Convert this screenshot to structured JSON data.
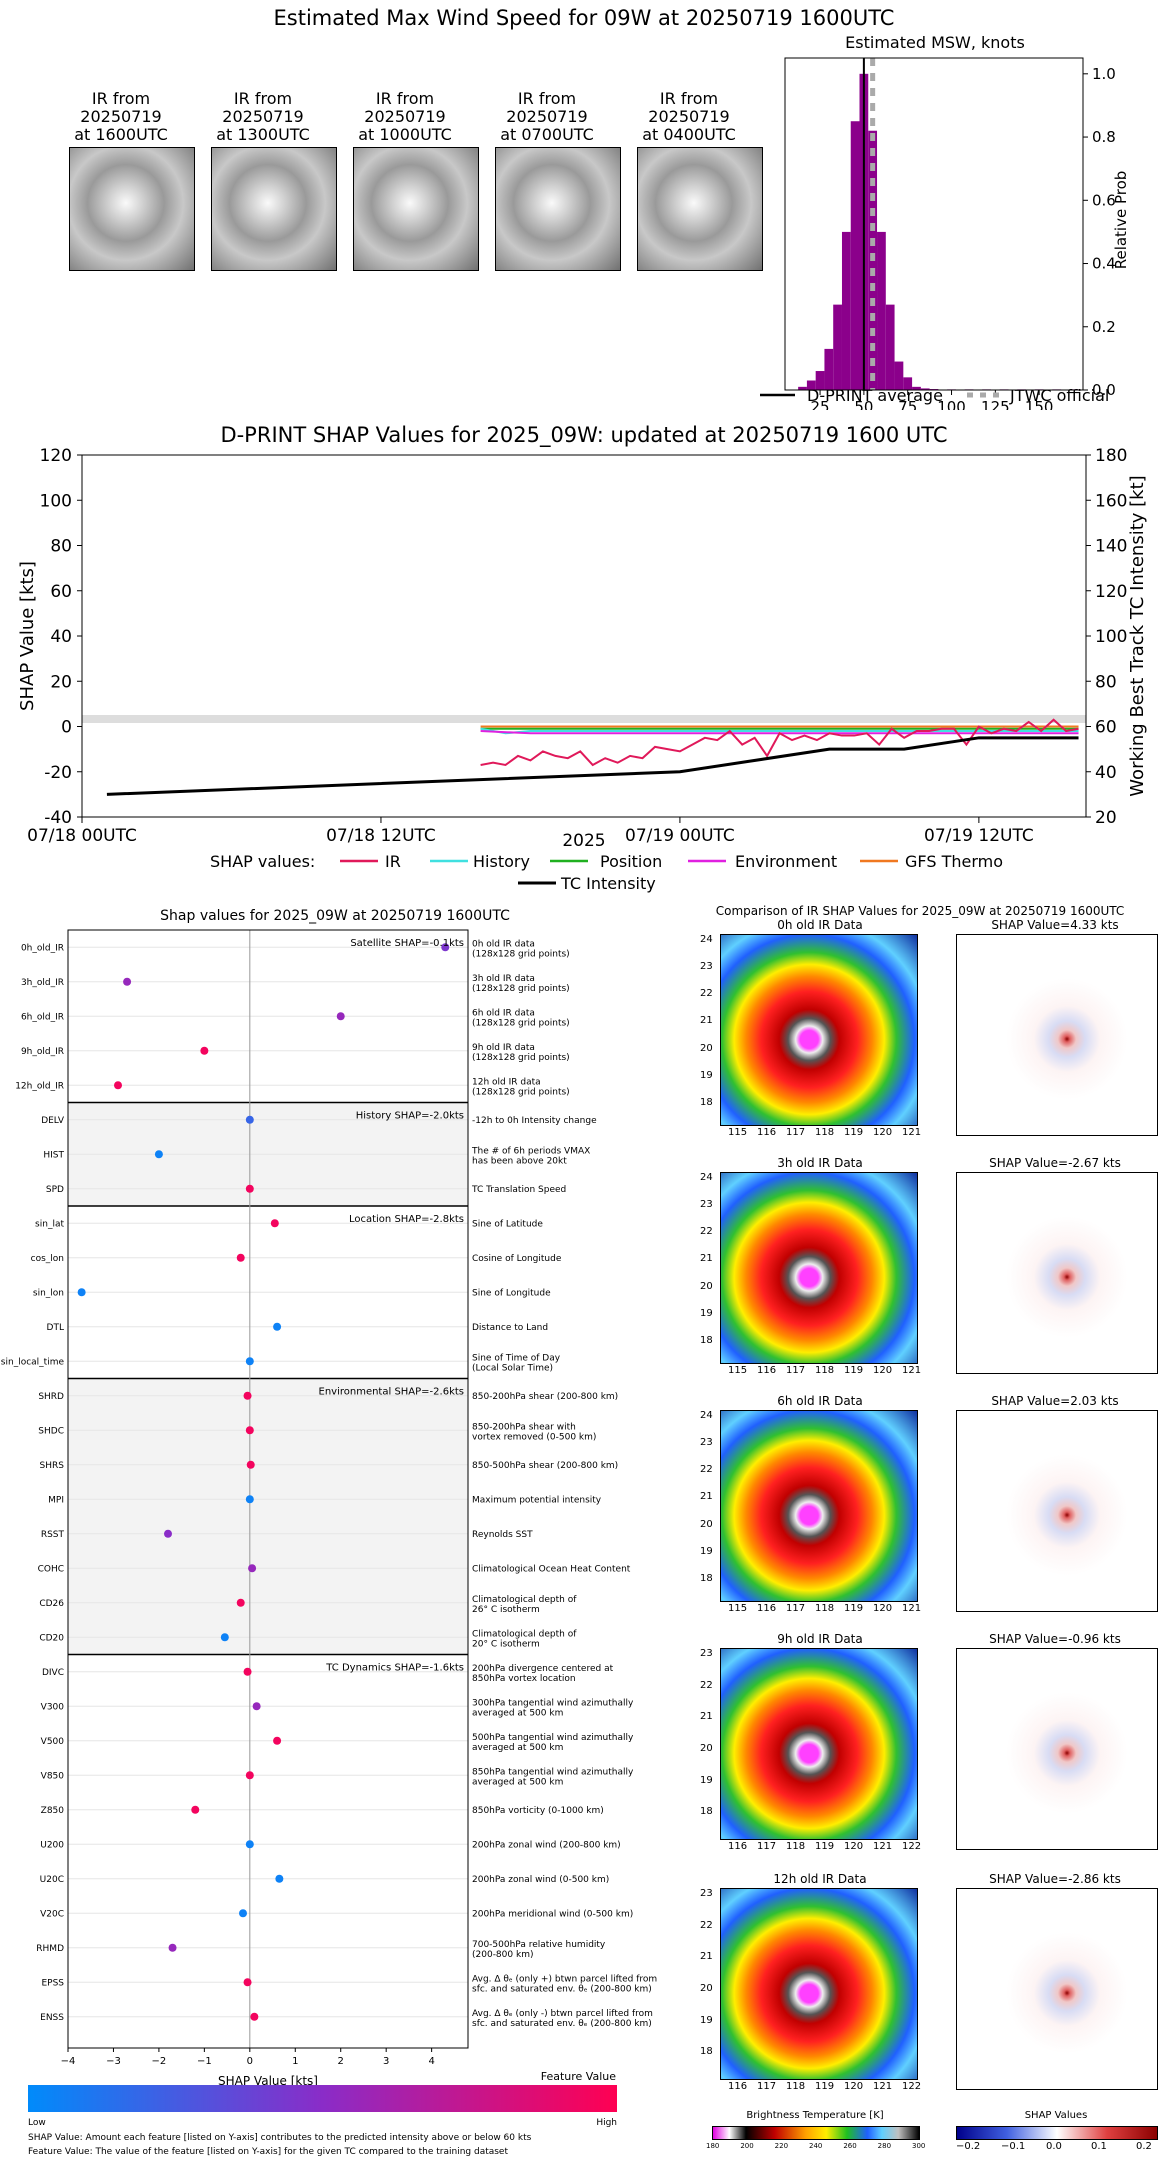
{
  "main_title": "Estimated Max Wind Speed for 09W at 20250719 1600UTC",
  "thumbnails": [
    {
      "line1": "IR from",
      "line2": "20250719",
      "line3": "at 1600UTC"
    },
    {
      "line1": "IR from",
      "line2": "20250719",
      "line3": "at 1300UTC"
    },
    {
      "line1": "IR from",
      "line2": "20250719",
      "line3": "at 1000UTC"
    },
    {
      "line1": "IR from",
      "line2": "20250719",
      "line3": "at 0700UTC"
    },
    {
      "line1": "IR from",
      "line2": "20250719",
      "line3": "at 0400UTC"
    }
  ],
  "colors": {
    "purple": "#8b008b",
    "ir": "#e0195a",
    "history": "#40e0e0",
    "position": "#20b020",
    "environment": "#e020e0",
    "gfs": "#f07820",
    "black": "#000000",
    "low": "#008bfb",
    "high": "#ff0052"
  },
  "chart_data": [
    {
      "type": "bar",
      "title": "Estimated MSW, knots",
      "ylabel": "Relative Prob",
      "xticks": [
        "25",
        "50",
        "75",
        "100",
        "125",
        "150"
      ],
      "yticks": [
        "0.0",
        "0.2",
        "0.4",
        "0.6",
        "0.8",
        "1.0"
      ],
      "xlim": [
        5,
        175
      ],
      "ylim": [
        0,
        1.05
      ],
      "bin_centers": [
        15,
        20,
        25,
        30,
        35,
        40,
        45,
        50,
        55,
        60,
        65,
        70,
        75,
        80,
        85,
        90,
        100,
        110,
        120,
        130,
        140,
        150,
        160,
        170
      ],
      "values": [
        0.01,
        0.03,
        0.06,
        0.13,
        0.27,
        0.5,
        0.85,
        1.0,
        0.82,
        0.5,
        0.27,
        0.09,
        0.04,
        0.01,
        0.005,
        0.003,
        0.002,
        0.002,
        0.002,
        0.002,
        0.002,
        0.002,
        0.002,
        0.002
      ],
      "dprint_average": 50,
      "jtwc_official": 55,
      "legend": {
        "dprint": "D-PRINT average",
        "jtwc": "JTWC official"
      }
    },
    {
      "type": "line",
      "title": "D-PRINT SHAP Values for 2025_09W: updated at 20250719 1600 UTC",
      "ylabel": "SHAP Value [kts]",
      "y2label": "Working Best Track TC Intensity [kt]",
      "xlabel": "2025",
      "xticks": [
        "07/18 00UTC",
        "07/18 12UTC",
        "07/19 00UTC",
        "07/19 12UTC"
      ],
      "yticks": [
        "-40",
        "-20",
        "0",
        "20",
        "40",
        "60",
        "80",
        "100",
        "120"
      ],
      "y2ticks": [
        "20",
        "40",
        "60",
        "80",
        "100",
        "120",
        "140",
        "160",
        "180"
      ],
      "ylim": [
        -40,
        120
      ],
      "y2lim": [
        20,
        180
      ],
      "x_hours": [
        0,
        40
      ],
      "tc_intensity": {
        "x": [
          1,
          24,
          30,
          33,
          36,
          40
        ],
        "y": [
          30,
          40,
          50,
          50,
          55,
          55
        ]
      },
      "ir": {
        "x": [
          16,
          16.5,
          17,
          17.5,
          18,
          18.5,
          19,
          19.5,
          20,
          20.5,
          21,
          21.5,
          22,
          22.5,
          23,
          23.5,
          24,
          24.5,
          25,
          25.5,
          26,
          26.5,
          27,
          27.5,
          28,
          28.5,
          29,
          29.5,
          30,
          30.5,
          31,
          31.5,
          32,
          32.5,
          33,
          33.5,
          34,
          34.5,
          35,
          35.5,
          36,
          36.5,
          37,
          37.5,
          38,
          38.5,
          39,
          39.5,
          40
        ],
        "y": [
          -17,
          -16,
          -17,
          -13,
          -15,
          -11,
          -13,
          -14,
          -11,
          -17,
          -14,
          -16,
          -13,
          -14,
          -9,
          -10,
          -11,
          -8,
          -5,
          -6,
          -2,
          -8,
          -5,
          -13,
          -3,
          -6,
          -4,
          -6,
          -3,
          -4,
          -4,
          -3,
          -8,
          -1,
          -5,
          -2,
          -2,
          -1,
          -1,
          -8,
          0,
          -3,
          -1,
          -2,
          2,
          -2,
          3,
          -2,
          -1
        ]
      },
      "history": {
        "x": [
          16,
          17,
          18,
          20,
          24,
          28,
          32,
          36,
          40
        ],
        "y": [
          -1,
          -3,
          -2,
          -2,
          -2,
          -2,
          -2,
          -2,
          -2
        ]
      },
      "position": {
        "x": [
          16,
          40
        ],
        "y": [
          -1,
          -1
        ]
      },
      "environment": {
        "x": [
          16,
          18,
          24,
          32,
          40
        ],
        "y": [
          -2,
          -3,
          -3,
          -3,
          -3
        ]
      },
      "gfs": {
        "x": [
          16,
          40
        ],
        "y": [
          0,
          0
        ]
      },
      "legend": {
        "prefix": "SHAP values:",
        "ir": "IR",
        "history": "History",
        "position": "Position",
        "environment": "Environment",
        "gfs": "GFS Thermo",
        "tc": "TC Intensity"
      }
    },
    {
      "type": "scatter",
      "title": "Shap values for 2025_09W at 20250719 1600UTC",
      "xlabel": "SHAP Value [kts]",
      "xticks": [
        "−4",
        "−3",
        "−2",
        "−1",
        "0",
        "1",
        "2",
        "3",
        "4"
      ],
      "xlim": [
        -4.0,
        4.8
      ],
      "groups": [
        {
          "label": "Satellite SHAP=-0.1kts",
          "features": [
            {
              "name": "0h_old_IR",
              "desc1": "0h old IR data",
              "desc2": "(128x128 grid points)",
              "value": 4.3,
              "fv": 0.45
            },
            {
              "name": "3h_old_IR",
              "desc1": "3h old IR data",
              "desc2": "(128x128 grid points)",
              "value": -2.7,
              "fv": 0.55
            },
            {
              "name": "6h_old_IR",
              "desc1": "6h old IR data",
              "desc2": "(128x128 grid points)",
              "value": 2.0,
              "fv": 0.55
            },
            {
              "name": "9h_old_IR",
              "desc1": "9h old IR data",
              "desc2": "(128x128 grid points)",
              "value": -1.0,
              "fv": 0.95
            },
            {
              "name": "12h_old_IR",
              "desc1": "12h old IR data",
              "desc2": "(128x128 grid points)",
              "value": -2.9,
              "fv": 0.95
            }
          ]
        },
        {
          "label": "History SHAP=-2.0kts",
          "features": [
            {
              "name": "DELV",
              "desc1": "-12h to 0h Intensity change",
              "desc2": "",
              "value": 0.0,
              "fv": 0.2
            },
            {
              "name": "HIST",
              "desc1": "The # of 6h periods VMAX",
              "desc2": "has been above 20kt",
              "value": -2.0,
              "fv": 0.05
            },
            {
              "name": "SPD",
              "desc1": "TC Translation Speed",
              "desc2": "",
              "value": 0.0,
              "fv": 0.95
            }
          ]
        },
        {
          "label": "Location SHAP=-2.8kts",
          "features": [
            {
              "name": "sin_lat",
              "desc1": "Sine of Latitude",
              "desc2": "",
              "value": 0.55,
              "fv": 0.95
            },
            {
              "name": "cos_lon",
              "desc1": "Cosine of Longitude",
              "desc2": "",
              "value": -0.2,
              "fv": 0.95
            },
            {
              "name": "sin_lon",
              "desc1": "Sine of Longitude",
              "desc2": "",
              "value": -3.7,
              "fv": 0.05
            },
            {
              "name": "DTL",
              "desc1": "Distance to Land",
              "desc2": "",
              "value": 0.6,
              "fv": 0.05
            },
            {
              "name": "sin_local_time",
              "desc1": "Sine of Time of Day",
              "desc2": "(Local Solar Time)",
              "value": 0.0,
              "fv": 0.05
            }
          ]
        },
        {
          "label": "Environmental SHAP=-2.6kts",
          "features": [
            {
              "name": "SHRD",
              "desc1": "850-200hPa shear (200-800 km)",
              "desc2": "",
              "value": -0.05,
              "fv": 0.95
            },
            {
              "name": "SHDC",
              "desc1": "850-200hPa shear with",
              "desc2": "vortex removed (0-500 km)",
              "value": 0.0,
              "fv": 0.95
            },
            {
              "name": "SHRS",
              "desc1": "850-500hPa shear (200-800 km)",
              "desc2": "",
              "value": 0.02,
              "fv": 0.95
            },
            {
              "name": "MPI",
              "desc1": "Maximum potential intensity",
              "desc2": "",
              "value": 0.0,
              "fv": 0.05
            },
            {
              "name": "RSST",
              "desc1": "Reynolds SST",
              "desc2": "",
              "value": -1.8,
              "fv": 0.5
            },
            {
              "name": "COHC",
              "desc1": "Climatological Ocean Heat Content",
              "desc2": "",
              "value": 0.05,
              "fv": 0.55
            },
            {
              "name": "CD26",
              "desc1": "Climatological depth of",
              "desc2": "26° C isotherm",
              "value": -0.2,
              "fv": 0.95
            },
            {
              "name": "CD20",
              "desc1": "Climatological depth of",
              "desc2": "20° C isotherm",
              "value": -0.55,
              "fv": 0.05
            }
          ]
        },
        {
          "label": "TC Dynamics SHAP=-1.6kts",
          "features": [
            {
              "name": "DIVC",
              "desc1": "200hPa divergence centered at",
              "desc2": "850hPa vortex location",
              "value": -0.05,
              "fv": 0.95
            },
            {
              "name": "V300",
              "desc1": "300hPa tangential wind azimuthally",
              "desc2": "averaged at 500 km",
              "value": 0.15,
              "fv": 0.55
            },
            {
              "name": "V500",
              "desc1": "500hPa tangential wind azimuthally",
              "desc2": "averaged at 500 km",
              "value": 0.6,
              "fv": 0.95
            },
            {
              "name": "V850",
              "desc1": "850hPa tangential wind azimuthally",
              "desc2": "averaged at 500 km",
              "value": 0.0,
              "fv": 0.95
            },
            {
              "name": "Z850",
              "desc1": "850hPa vorticity (0-1000 km)",
              "desc2": "",
              "value": -1.2,
              "fv": 0.95
            },
            {
              "name": "U200",
              "desc1": "200hPa zonal wind (200-800 km)",
              "desc2": "",
              "value": 0.0,
              "fv": 0.05
            },
            {
              "name": "U20C",
              "desc1": "200hPa zonal wind (0-500 km)",
              "desc2": "",
              "value": 0.65,
              "fv": 0.05
            },
            {
              "name": "V20C",
              "desc1": "200hPa meridional wind (0-500 km)",
              "desc2": "",
              "value": -0.15,
              "fv": 0.05
            },
            {
              "name": "RHMD",
              "desc1": "700-500hPa relative humidity",
              "desc2": "(200-800 km)",
              "value": -1.7,
              "fv": 0.55
            },
            {
              "name": "EPSS",
              "desc1": "Avg. Δ θₑ (only +) btwn parcel lifted from",
              "desc2": "sfc. and saturated env. θₑ (200-800 km)",
              "value": -0.05,
              "fv": 0.95
            },
            {
              "name": "ENSS",
              "desc1": "Avg. Δ θₑ (only -) btwn parcel lifted from",
              "desc2": "sfc. and saturated env. θₑ (200-800 km)",
              "value": 0.1,
              "fv": 0.95
            }
          ]
        }
      ]
    }
  ],
  "feature_bar": {
    "title": "Feature Value",
    "low": "Low",
    "high": "High"
  },
  "footnotes": {
    "line1": "SHAP Value: Amount each feature [listed on Y-axis] contributes to the predicted intensity above or below 60 kts",
    "line2": "Feature Value: The value of the feature [listed on Y-axis] for the given TC compared to the training dataset"
  },
  "comparison": {
    "title": "Comparison of IR SHAP Values for 2025_09W at 20250719 1600UTC",
    "panels": [
      {
        "ir_title": "0h old IR Data",
        "shap_title": "SHAP Value=4.33 kts",
        "xticks": [
          "115",
          "116",
          "117",
          "118",
          "119",
          "120",
          "121"
        ],
        "yticks": [
          "24",
          "23",
          "22",
          "21",
          "20",
          "19",
          "18"
        ]
      },
      {
        "ir_title": "3h old IR Data",
        "shap_title": "SHAP Value=-2.67 kts",
        "xticks": [
          "115",
          "116",
          "117",
          "118",
          "119",
          "120",
          "121"
        ],
        "yticks": [
          "24",
          "23",
          "22",
          "21",
          "20",
          "19",
          "18"
        ]
      },
      {
        "ir_title": "6h old IR Data",
        "shap_title": "SHAP Value=2.03 kts",
        "xticks": [
          "115",
          "116",
          "117",
          "118",
          "119",
          "120",
          "121"
        ],
        "yticks": [
          "24",
          "23",
          "22",
          "21",
          "20",
          "19",
          "18"
        ]
      },
      {
        "ir_title": "9h old IR Data",
        "shap_title": "SHAP Value=-0.96 kts",
        "xticks": [
          "116",
          "117",
          "118",
          "119",
          "120",
          "121",
          "122"
        ],
        "yticks": [
          "23",
          "22",
          "21",
          "20",
          "19",
          "18"
        ]
      },
      {
        "ir_title": "12h old IR Data",
        "shap_title": "SHAP Value=-2.86 kts",
        "xticks": [
          "116",
          "117",
          "118",
          "119",
          "120",
          "121",
          "122"
        ],
        "yticks": [
          "23",
          "22",
          "21",
          "20",
          "19",
          "18"
        ]
      }
    ],
    "bt_label": "Brightness Temperature [K]",
    "bt_ticks": [
      "180",
      "200",
      "220",
      "240",
      "260",
      "280",
      "300"
    ],
    "shap_label": "SHAP Values",
    "shap_ticks": [
      "−0.2",
      "−0.1",
      "0.0",
      "0.1",
      "0.2"
    ]
  }
}
